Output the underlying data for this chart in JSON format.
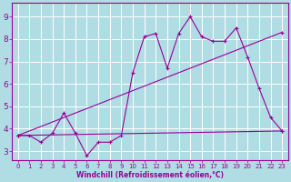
{
  "xlabel": "Windchill (Refroidissement éolien,°C)",
  "bg_color": "#b0dde4",
  "line_color": "#990099",
  "grid_color": "#ffffff",
  "spine_color": "#990099",
  "xlim": [
    -0.5,
    23.5
  ],
  "ylim": [
    2.6,
    9.6
  ],
  "yticks": [
    3,
    4,
    5,
    6,
    7,
    8,
    9
  ],
  "xticks": [
    0,
    1,
    2,
    3,
    4,
    5,
    6,
    7,
    8,
    9,
    10,
    11,
    12,
    13,
    14,
    15,
    16,
    17,
    18,
    19,
    20,
    21,
    22,
    23
  ],
  "series1_x": [
    0,
    1,
    2,
    3,
    4,
    5,
    6,
    7,
    8,
    9,
    10,
    11,
    12,
    13,
    14,
    15,
    16,
    17,
    18,
    19,
    20,
    21,
    22,
    23
  ],
  "series1_y": [
    3.7,
    3.7,
    3.4,
    3.8,
    4.7,
    3.8,
    2.8,
    3.4,
    3.4,
    3.7,
    6.5,
    8.1,
    8.25,
    6.7,
    8.25,
    9.0,
    8.1,
    7.9,
    7.9,
    8.5,
    7.2,
    5.8,
    4.5,
    3.9
  ],
  "series2_x": [
    0,
    23
  ],
  "series2_y": [
    3.7,
    3.9
  ],
  "series3_x": [
    0,
    23
  ],
  "series3_y": [
    3.7,
    8.3
  ],
  "xlabel_fontsize": 5.5,
  "tick_fontsize_x": 5.0,
  "tick_fontsize_y": 6.5
}
